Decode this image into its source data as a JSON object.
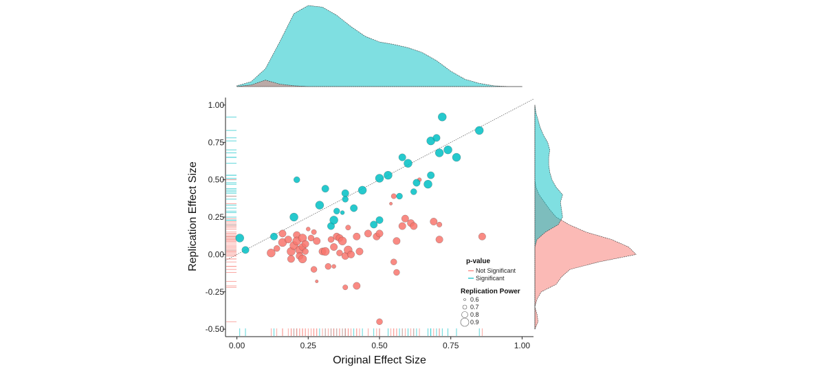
{
  "chart_data": {
    "type": "scatter",
    "xlabel": "Original Effect Size",
    "ylabel": "Replication Effect Size",
    "xlim": [
      -0.04,
      1.04
    ],
    "ylim": [
      -0.55,
      1.05
    ],
    "x_ticks": [
      "0.00",
      "0.25",
      "0.50",
      "0.75",
      "1.00"
    ],
    "y_ticks": [
      "-0.50",
      "-0.25",
      "0.00",
      "0.25",
      "0.50",
      "0.75",
      "1.00"
    ],
    "x_tick_values": [
      0,
      0.25,
      0.5,
      0.75,
      1.0
    ],
    "y_tick_values": [
      -0.5,
      -0.25,
      0,
      0.25,
      0.5,
      0.75,
      1.0
    ],
    "reference_line": {
      "type": "identity",
      "style": "dotted"
    },
    "colors": {
      "not_significant": "#F8766D",
      "significant": "#00BFC4"
    },
    "legend": {
      "placement": "bottom-right",
      "color_title": "p-value",
      "color_entries": [
        "Not Significant",
        "Significant"
      ],
      "size_title": "Replication Power",
      "size_entries": [
        "0.6",
        "0.7",
        "0.8",
        "0.9"
      ],
      "size_values": [
        0.6,
        0.7,
        0.8,
        0.9
      ]
    },
    "series": [
      {
        "name": "Significant",
        "points": [
          {
            "x": 0.01,
            "y": 0.11,
            "power": 0.9
          },
          {
            "x": 0.03,
            "y": 0.03,
            "power": 0.85
          },
          {
            "x": 0.13,
            "y": 0.12,
            "power": 0.85
          },
          {
            "x": 0.2,
            "y": 0.25,
            "power": 0.9
          },
          {
            "x": 0.21,
            "y": 0.5,
            "power": 0.8
          },
          {
            "x": 0.29,
            "y": 0.33,
            "power": 0.9
          },
          {
            "x": 0.31,
            "y": 0.44,
            "power": 0.85
          },
          {
            "x": 0.33,
            "y": 0.19,
            "power": 0.85
          },
          {
            "x": 0.34,
            "y": 0.23,
            "power": 0.9
          },
          {
            "x": 0.35,
            "y": 0.29,
            "power": 0.8
          },
          {
            "x": 0.37,
            "y": 0.28,
            "power": 0.7
          },
          {
            "x": 0.38,
            "y": 0.41,
            "power": 0.85
          },
          {
            "x": 0.38,
            "y": 0.37,
            "power": 0.8
          },
          {
            "x": 0.41,
            "y": 0.31,
            "power": 0.85
          },
          {
            "x": 0.44,
            "y": 0.43,
            "power": 0.9
          },
          {
            "x": 0.48,
            "y": 0.2,
            "power": 0.85
          },
          {
            "x": 0.5,
            "y": 0.23,
            "power": 0.85
          },
          {
            "x": 0.5,
            "y": 0.51,
            "power": 0.9
          },
          {
            "x": 0.53,
            "y": 0.53,
            "power": 0.9
          },
          {
            "x": 0.57,
            "y": 0.39,
            "power": 0.8
          },
          {
            "x": 0.58,
            "y": 0.65,
            "power": 0.85
          },
          {
            "x": 0.6,
            "y": 0.61,
            "power": 0.9
          },
          {
            "x": 0.62,
            "y": 0.42,
            "power": 0.8
          },
          {
            "x": 0.63,
            "y": 0.48,
            "power": 0.85
          },
          {
            "x": 0.67,
            "y": 0.47,
            "power": 0.9
          },
          {
            "x": 0.68,
            "y": 0.53,
            "power": 0.85
          },
          {
            "x": 0.68,
            "y": 0.76,
            "power": 0.9
          },
          {
            "x": 0.7,
            "y": 0.78,
            "power": 0.85
          },
          {
            "x": 0.71,
            "y": 0.68,
            "power": 0.9
          },
          {
            "x": 0.72,
            "y": 0.92,
            "power": 0.9
          },
          {
            "x": 0.74,
            "y": 0.7,
            "power": 0.9
          },
          {
            "x": 0.77,
            "y": 0.65,
            "power": 0.9
          },
          {
            "x": 0.85,
            "y": 0.83,
            "power": 0.9
          }
        ]
      },
      {
        "name": "Not Significant",
        "points": [
          {
            "x": 0.12,
            "y": 0.01,
            "power": 0.9
          },
          {
            "x": 0.14,
            "y": 0.04,
            "power": 0.8
          },
          {
            "x": 0.16,
            "y": 0.14,
            "power": 0.85
          },
          {
            "x": 0.16,
            "y": 0.08,
            "power": 0.9
          },
          {
            "x": 0.18,
            "y": 0.1,
            "power": 0.85
          },
          {
            "x": 0.19,
            "y": 0.02,
            "power": 0.9
          },
          {
            "x": 0.19,
            "y": -0.03,
            "power": 0.85
          },
          {
            "x": 0.2,
            "y": 0.06,
            "power": 0.9
          },
          {
            "x": 0.21,
            "y": 0.13,
            "power": 0.85
          },
          {
            "x": 0.21,
            "y": 0.09,
            "power": 0.9
          },
          {
            "x": 0.22,
            "y": 0.03,
            "power": 0.9
          },
          {
            "x": 0.22,
            "y": -0.01,
            "power": 0.85
          },
          {
            "x": 0.23,
            "y": 0.11,
            "power": 0.9
          },
          {
            "x": 0.23,
            "y": 0.05,
            "power": 0.85
          },
          {
            "x": 0.23,
            "y": -0.03,
            "power": 0.9
          },
          {
            "x": 0.24,
            "y": 0.07,
            "power": 0.85
          },
          {
            "x": 0.24,
            "y": 0.02,
            "power": 0.8
          },
          {
            "x": 0.25,
            "y": 0.17,
            "power": 0.7
          },
          {
            "x": 0.26,
            "y": 0.11,
            "power": 0.8
          },
          {
            "x": 0.27,
            "y": -0.1,
            "power": 0.8
          },
          {
            "x": 0.27,
            "y": 0.15,
            "power": 0.75
          },
          {
            "x": 0.28,
            "y": 0.09,
            "power": 0.85
          },
          {
            "x": 0.28,
            "y": -0.18,
            "power": 0.65
          },
          {
            "x": 0.3,
            "y": 0.02,
            "power": 0.85
          },
          {
            "x": 0.31,
            "y": 0.02,
            "power": 0.9
          },
          {
            "x": 0.32,
            "y": -0.08,
            "power": 0.8
          },
          {
            "x": 0.33,
            "y": 0.1,
            "power": 0.8
          },
          {
            "x": 0.34,
            "y": 0.05,
            "power": 0.85
          },
          {
            "x": 0.34,
            "y": -0.08,
            "power": 0.7
          },
          {
            "x": 0.35,
            "y": 0.12,
            "power": 0.85
          },
          {
            "x": 0.36,
            "y": 0.11,
            "power": 0.85
          },
          {
            "x": 0.36,
            "y": 0.01,
            "power": 0.8
          },
          {
            "x": 0.37,
            "y": 0.09,
            "power": 0.9
          },
          {
            "x": 0.38,
            "y": -0.01,
            "power": 0.85
          },
          {
            "x": 0.38,
            "y": -0.22,
            "power": 0.75
          },
          {
            "x": 0.39,
            "y": 0.03,
            "power": 0.9
          },
          {
            "x": 0.39,
            "y": 0.18,
            "power": 0.75
          },
          {
            "x": 0.4,
            "y": 0.0,
            "power": 0.85
          },
          {
            "x": 0.42,
            "y": 0.12,
            "power": 0.85
          },
          {
            "x": 0.42,
            "y": -0.21,
            "power": 0.85
          },
          {
            "x": 0.43,
            "y": 0.02,
            "power": 0.85
          },
          {
            "x": 0.46,
            "y": 0.14,
            "power": 0.85
          },
          {
            "x": 0.49,
            "y": 0.12,
            "power": 0.85
          },
          {
            "x": 0.5,
            "y": 0.14,
            "power": 0.85
          },
          {
            "x": 0.5,
            "y": -0.45,
            "power": 0.8
          },
          {
            "x": 0.54,
            "y": 0.34,
            "power": 0.65
          },
          {
            "x": 0.55,
            "y": 0.39,
            "power": 0.75
          },
          {
            "x": 0.55,
            "y": -0.05,
            "power": 0.8
          },
          {
            "x": 0.56,
            "y": 0.09,
            "power": 0.85
          },
          {
            "x": 0.56,
            "y": -0.12,
            "power": 0.8
          },
          {
            "x": 0.58,
            "y": 0.19,
            "power": 0.85
          },
          {
            "x": 0.59,
            "y": 0.24,
            "power": 0.85
          },
          {
            "x": 0.61,
            "y": 0.21,
            "power": 0.85
          },
          {
            "x": 0.62,
            "y": 0.19,
            "power": 0.85
          },
          {
            "x": 0.64,
            "y": 0.5,
            "power": 0.7
          },
          {
            "x": 0.69,
            "y": 0.22,
            "power": 0.85
          },
          {
            "x": 0.71,
            "y": 0.1,
            "power": 0.85
          },
          {
            "x": 0.71,
            "y": 0.2,
            "power": 0.75
          },
          {
            "x": 0.86,
            "y": 0.12,
            "power": 0.85
          }
        ]
      }
    ],
    "marginal_x": {
      "type": "density",
      "grid": [
        0.0,
        0.05,
        0.1,
        0.15,
        0.2,
        0.25,
        0.3,
        0.35,
        0.4,
        0.45,
        0.5,
        0.55,
        0.6,
        0.65,
        0.7,
        0.75,
        0.8,
        0.85,
        0.9,
        0.95,
        1.0
      ],
      "significant": [
        0.01,
        0.06,
        0.22,
        0.55,
        0.9,
        1.0,
        0.98,
        0.88,
        0.74,
        0.62,
        0.55,
        0.52,
        0.48,
        0.42,
        0.32,
        0.19,
        0.09,
        0.04,
        0.01,
        0.0,
        0.0
      ],
      "not_significant": [
        0.0,
        0.02,
        0.08,
        0.03,
        0.01,
        0.0,
        0.0,
        0.0,
        0.0,
        0.0,
        0.0,
        0.0,
        0.0,
        0.0,
        0.0,
        0.0,
        0.0,
        0.0,
        0.0,
        0.0,
        0.0
      ]
    },
    "marginal_y": {
      "type": "density",
      "grid": [
        -0.5,
        -0.45,
        -0.4,
        -0.35,
        -0.3,
        -0.25,
        -0.2,
        -0.15,
        -0.1,
        -0.05,
        0.0,
        0.05,
        0.1,
        0.15,
        0.2,
        0.25,
        0.3,
        0.35,
        0.4,
        0.45,
        0.5,
        0.55,
        0.6,
        0.65,
        0.7,
        0.75,
        0.8,
        0.85,
        0.9,
        0.95,
        1.0
      ],
      "significant": [
        0.0,
        0.0,
        0.0,
        0.0,
        0.0,
        0.0,
        0.0,
        0.0,
        0.0,
        0.0,
        0.0,
        0.0,
        0.02,
        0.1,
        0.22,
        0.26,
        0.25,
        0.24,
        0.26,
        0.2,
        0.16,
        0.14,
        0.13,
        0.13,
        0.14,
        0.12,
        0.08,
        0.05,
        0.03,
        0.01,
        0.0
      ],
      "not_significant": [
        0.0,
        0.03,
        0.02,
        0.0,
        0.02,
        0.06,
        0.2,
        0.25,
        0.33,
        0.6,
        0.95,
        0.88,
        0.72,
        0.48,
        0.32,
        0.2,
        0.14,
        0.09,
        0.04,
        0.01,
        0.0,
        0.0,
        0.0,
        0.0,
        0.0,
        0.0,
        0.0,
        0.0,
        0.0,
        0.0,
        0.0
      ]
    }
  }
}
